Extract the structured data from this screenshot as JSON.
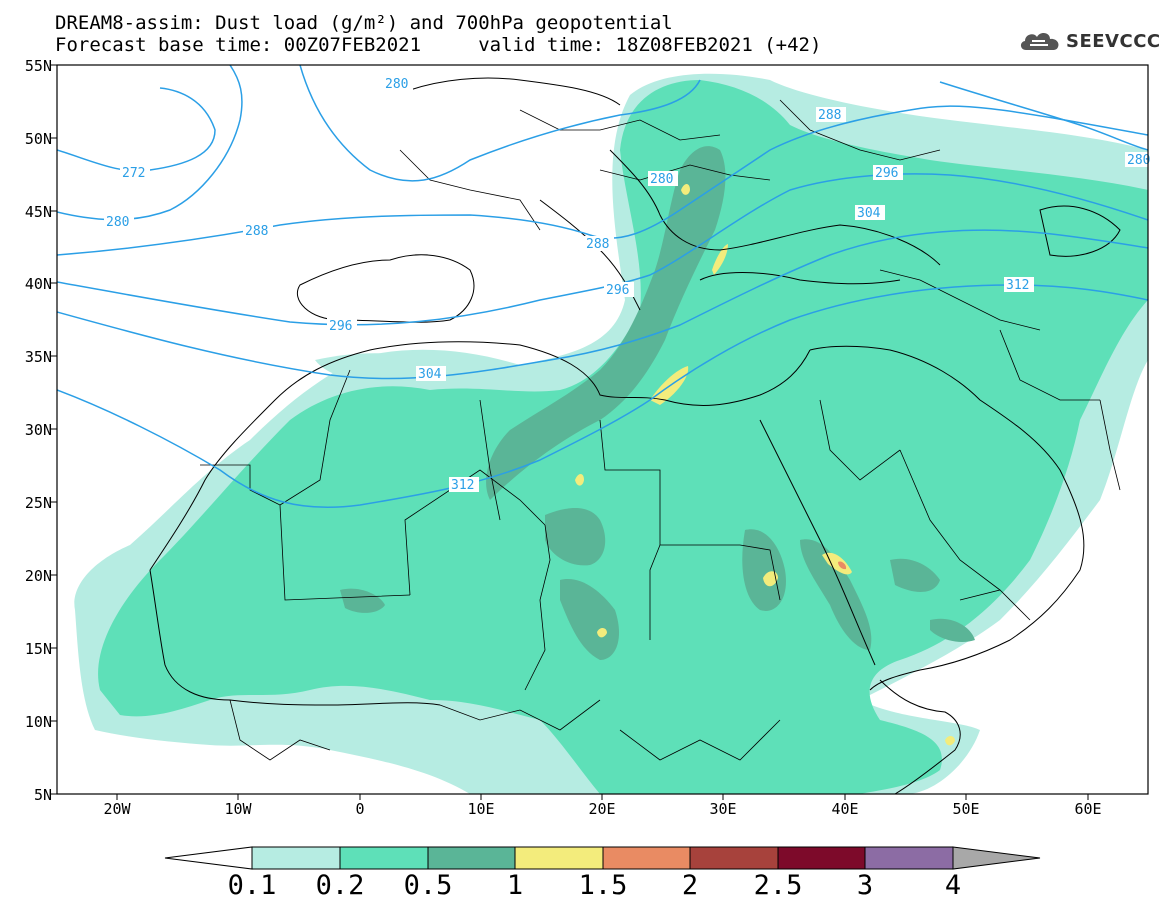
{
  "title": {
    "line1": "DREAM8-assim: Dust load (g/m²) and 700hPa geopotential",
    "line2": "Forecast base time: 00Z07FEB2021     valid time: 18Z08FEB2021 (+42)"
  },
  "logo": {
    "text": "SEEVCCC",
    "icon": "cloud-icon"
  },
  "axes": {
    "y_ticks": [
      "55N",
      "50N",
      "45N",
      "40N",
      "35N",
      "30N",
      "25N",
      "20N",
      "15N",
      "10N",
      "5N"
    ],
    "x_ticks": [
      "20W",
      "10W",
      "0",
      "10E",
      "20E",
      "30E",
      "40E",
      "50E",
      "60E"
    ],
    "lat_range": [
      5,
      55
    ],
    "lon_range": [
      -25,
      65
    ]
  },
  "contour_labels": [
    "272",
    "280",
    "280",
    "288",
    "280",
    "288",
    "288",
    "296",
    "296",
    "304",
    "304",
    "312",
    "312",
    "280"
  ],
  "colorbar": {
    "labels": [
      "0.1",
      "0.2",
      "0.5",
      "1",
      "1.5",
      "2",
      "2.5",
      "3",
      "4"
    ],
    "colors": [
      "#ffffff",
      "#b6ece2",
      "#5ee0b8",
      "#5ab597",
      "#f3ec7c",
      "#e98b63",
      "#a7423c",
      "#7d0a2a",
      "#8c6ca4",
      "#a8a8a8"
    ]
  },
  "colors": {
    "contour": "#2b9fe6",
    "frame": "#000000",
    "border": "#000000"
  }
}
